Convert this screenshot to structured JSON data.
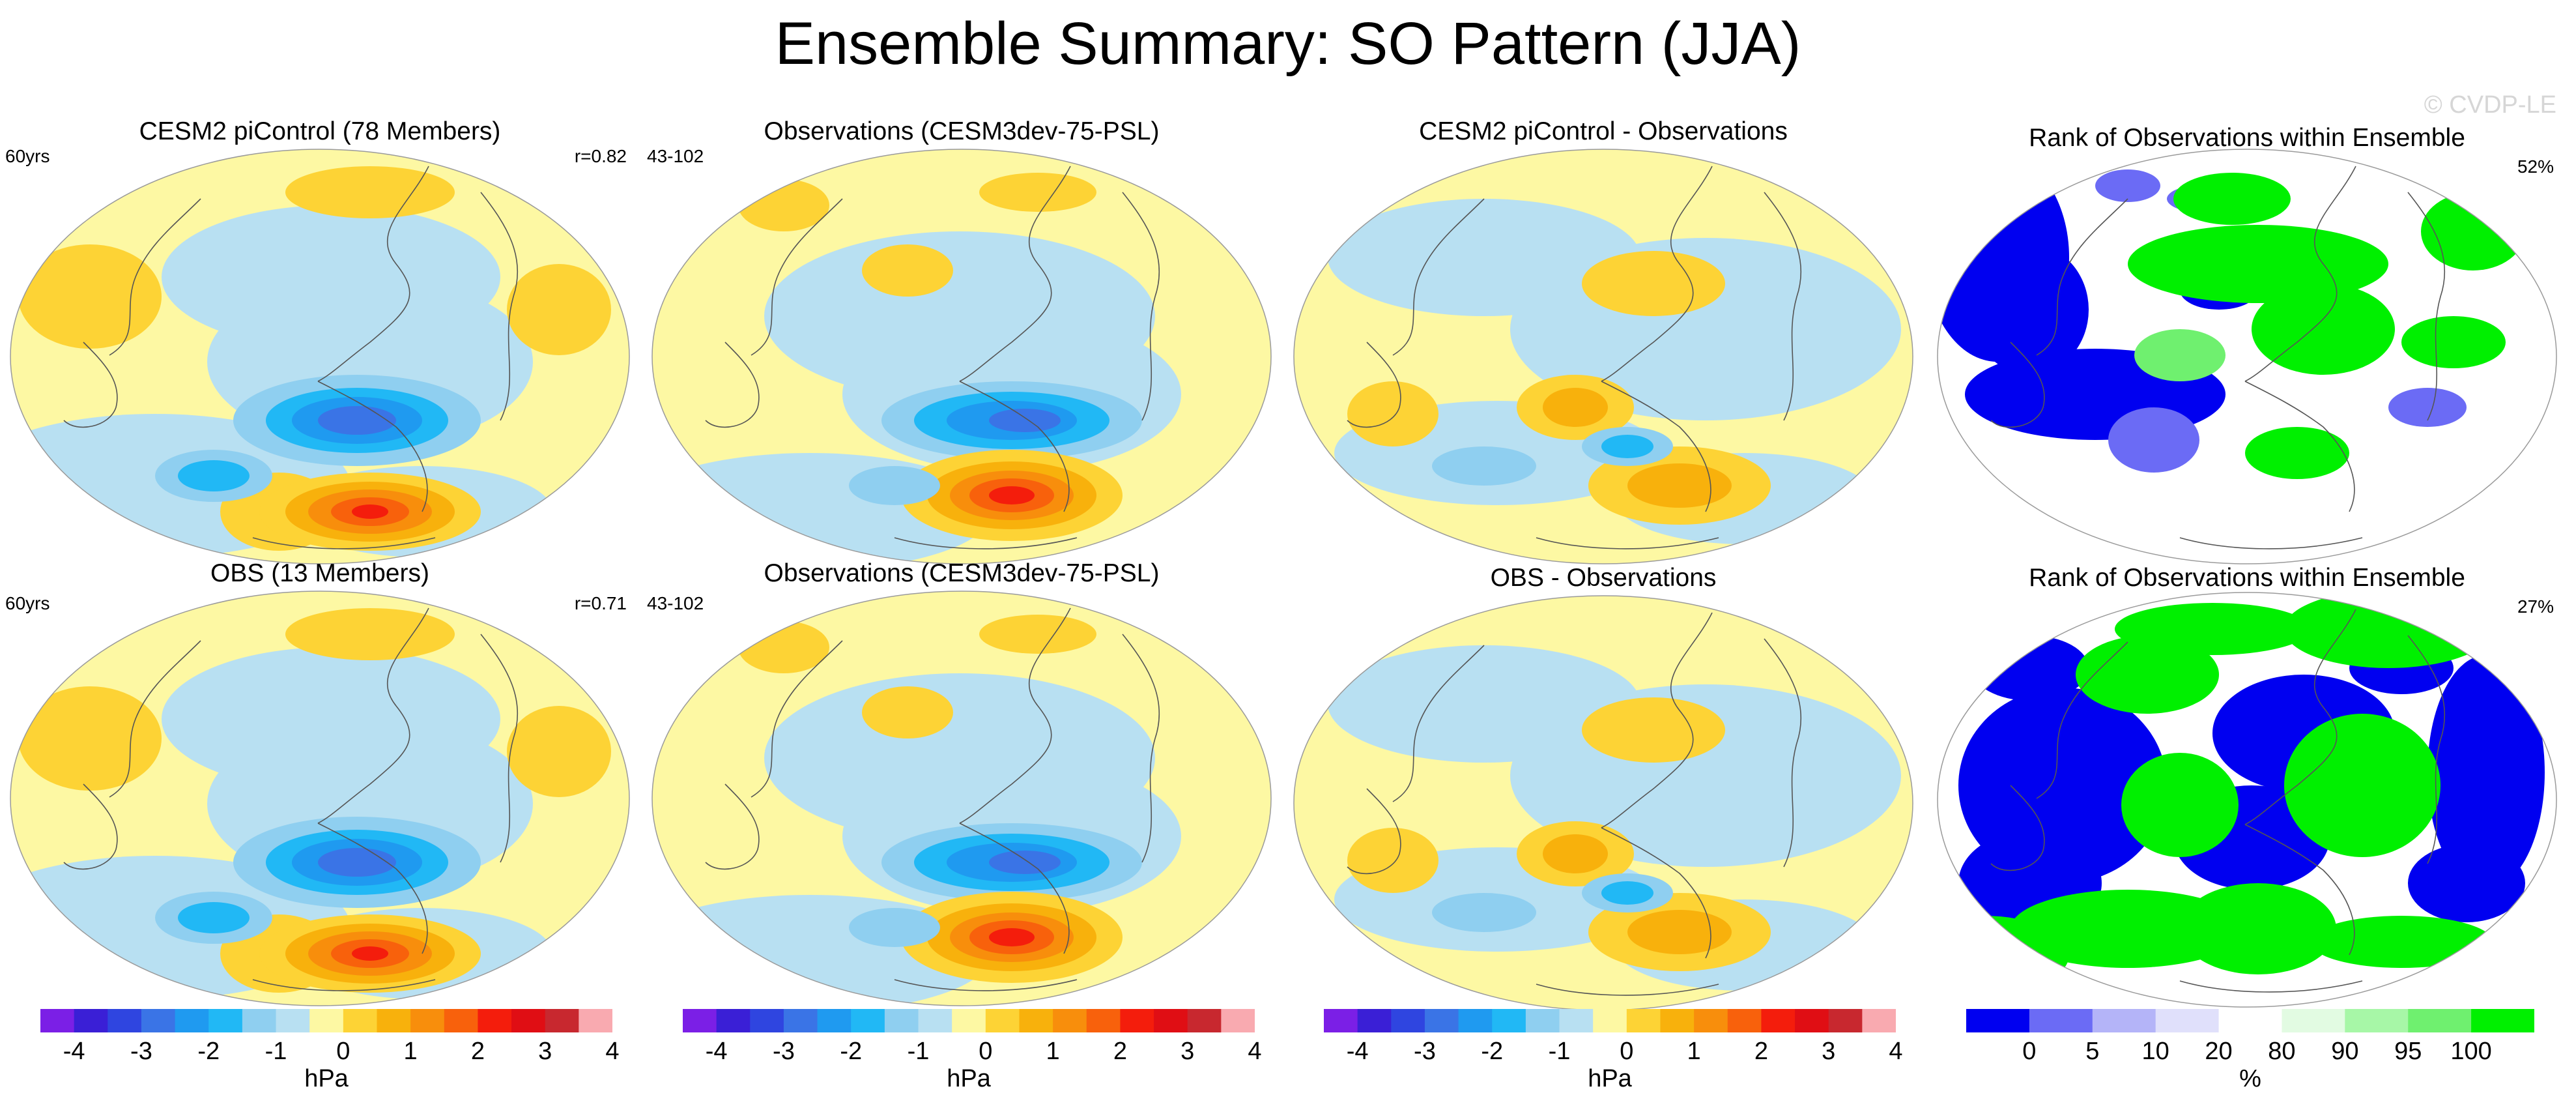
{
  "title": "Ensemble Summary: SO Pattern (JJA)",
  "watermark": "© CVDP-LE",
  "panels": [
    {
      "title": "CESM2 piControl (78 Members)",
      "left_label": "60yrs",
      "right_label": "r=0.82",
      "kind": "pattern"
    },
    {
      "title": "Observations (CESM3dev-75-PSL)",
      "left_label": "43-102",
      "right_label": "",
      "kind": "pattern_obs"
    },
    {
      "title": "CESM2 piControl - Observations",
      "left_label": "",
      "right_label": "",
      "kind": "difference"
    },
    {
      "title": "Rank of Observations within Ensemble",
      "left_label": "",
      "right_label": "52%",
      "kind": "rank"
    },
    {
      "title": "OBS (13 Members)",
      "left_label": "60yrs",
      "right_label": "r=0.71",
      "kind": "pattern"
    },
    {
      "title": "Observations (CESM3dev-75-PSL)",
      "left_label": "43-102",
      "right_label": "",
      "kind": "pattern_obs"
    },
    {
      "title": "OBS - Observations",
      "left_label": "",
      "right_label": "",
      "kind": "difference"
    },
    {
      "title": "Rank of Observations within Ensemble",
      "left_label": "",
      "right_label": "27%",
      "kind": "rank"
    }
  ],
  "colorbars": [
    {
      "label": "hPa",
      "ticks": [
        "-4",
        "-3",
        "-2",
        "-1",
        "0",
        "1",
        "2",
        "3",
        "4"
      ]
    },
    {
      "label": "hPa",
      "ticks": [
        "-4",
        "-3",
        "-2",
        "-1",
        "0",
        "1",
        "2",
        "3",
        "4"
      ]
    },
    {
      "label": "hPa",
      "ticks": [
        "-4",
        "-3",
        "-2",
        "-1",
        "0",
        "1",
        "2",
        "3",
        "4"
      ]
    },
    {
      "label": "%",
      "ticks": [
        "0",
        "5",
        "10",
        "20",
        "80",
        "90",
        "95",
        "100"
      ]
    }
  ],
  "colors": {
    "hpa": [
      "#7b1fe6",
      "#3a1fd6",
      "#2f45e0",
      "#3a74e6",
      "#1f9af0",
      "#21b8f5",
      "#8fcff0",
      "#b8e0f2",
      "#fdf8a3",
      "#fdd335",
      "#f8b10c",
      "#f88e0c",
      "#f8610c",
      "#f41d0c",
      "#e00e14",
      "#c8282f",
      "#f9aab0"
    ],
    "rank": [
      "#0000f0",
      "#6b6bf5",
      "#b4b4f8",
      "#e0e0fb",
      "#ffffff",
      "#e2fbe2",
      "#a7f7a7",
      "#6ff06f",
      "#00f000"
    ]
  },
  "chart_data": {
    "type": "heatmap",
    "title": "Ensemble Summary: SO Pattern (JJA)",
    "description_units": {
      "pattern": "hPa",
      "rank": "%"
    },
    "pattern_levels_hpa": [
      -4,
      -3.5,
      -3,
      -2.5,
      -2,
      -1.5,
      -1,
      -0.5,
      0,
      0.5,
      1,
      1.5,
      2,
      2.5,
      3,
      3.5,
      4
    ],
    "rank_levels_pct": [
      0,
      5,
      10,
      20,
      80,
      90,
      95,
      100
    ],
    "panel_stats": {
      "CESM2 piControl (78 Members)": {
        "pattern_correlation": 0.82,
        "years": "60yrs"
      },
      "OBS (13 Members)": {
        "pattern_correlation": 0.71,
        "years": "60yrs"
      },
      "Rank row 1": {
        "percent": 52
      },
      "Rank row 2": {
        "percent": 27
      }
    }
  }
}
